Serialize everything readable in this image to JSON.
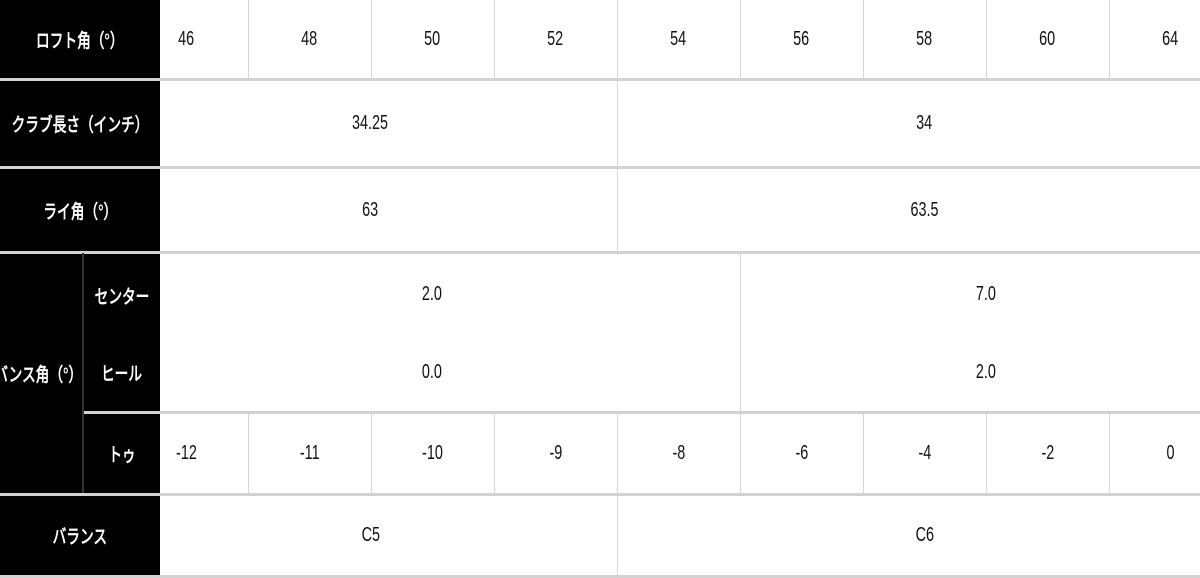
{
  "rows": [
    {
      "key": "loft",
      "label": "ロフト角（°）",
      "cells": [
        {
          "v": "46",
          "span": 1
        },
        {
          "v": "48",
          "span": 1
        },
        {
          "v": "50",
          "span": 1
        },
        {
          "v": "52",
          "span": 1
        },
        {
          "v": "54",
          "span": 1
        },
        {
          "v": "56",
          "span": 1
        },
        {
          "v": "58",
          "span": 1
        },
        {
          "v": "60",
          "span": 1
        },
        {
          "v": "64",
          "span": 1
        }
      ]
    },
    {
      "key": "length",
      "label": "クラブ長さ（インチ）",
      "cells": [
        {
          "v": "34.25",
          "span": 4
        },
        {
          "v": "34",
          "span": 5
        }
      ]
    },
    {
      "key": "lie",
      "label": "ライ角（°）",
      "cells": [
        {
          "v": "63",
          "span": 4
        },
        {
          "v": "63.5",
          "span": 5
        }
      ]
    },
    {
      "key": "bounce_center",
      "label": "センター",
      "cells": [
        {
          "v": "2.0",
          "span": 5
        },
        {
          "v": "7.0",
          "span": 4
        }
      ]
    },
    {
      "key": "bounce_heel",
      "label": "ヒール",
      "cells": [
        {
          "v": "0.0",
          "span": 5
        },
        {
          "v": "2.0",
          "span": 4
        }
      ]
    },
    {
      "key": "bounce_toe",
      "label": "トゥ",
      "cells": [
        {
          "v": "-12",
          "span": 1
        },
        {
          "v": "-11",
          "span": 1
        },
        {
          "v": "-10",
          "span": 1
        },
        {
          "v": "-9",
          "span": 1
        },
        {
          "v": "-8",
          "span": 1
        },
        {
          "v": "-6",
          "span": 1
        },
        {
          "v": "-4",
          "span": 1
        },
        {
          "v": "-2",
          "span": 1
        },
        {
          "v": "0",
          "span": 1
        }
      ]
    },
    {
      "key": "balance",
      "label": "バランス",
      "cells": [
        {
          "v": "C5",
          "span": 4
        },
        {
          "v": "C6",
          "span": 5
        }
      ]
    }
  ],
  "bounce_group_label": "バンス角（°）"
}
